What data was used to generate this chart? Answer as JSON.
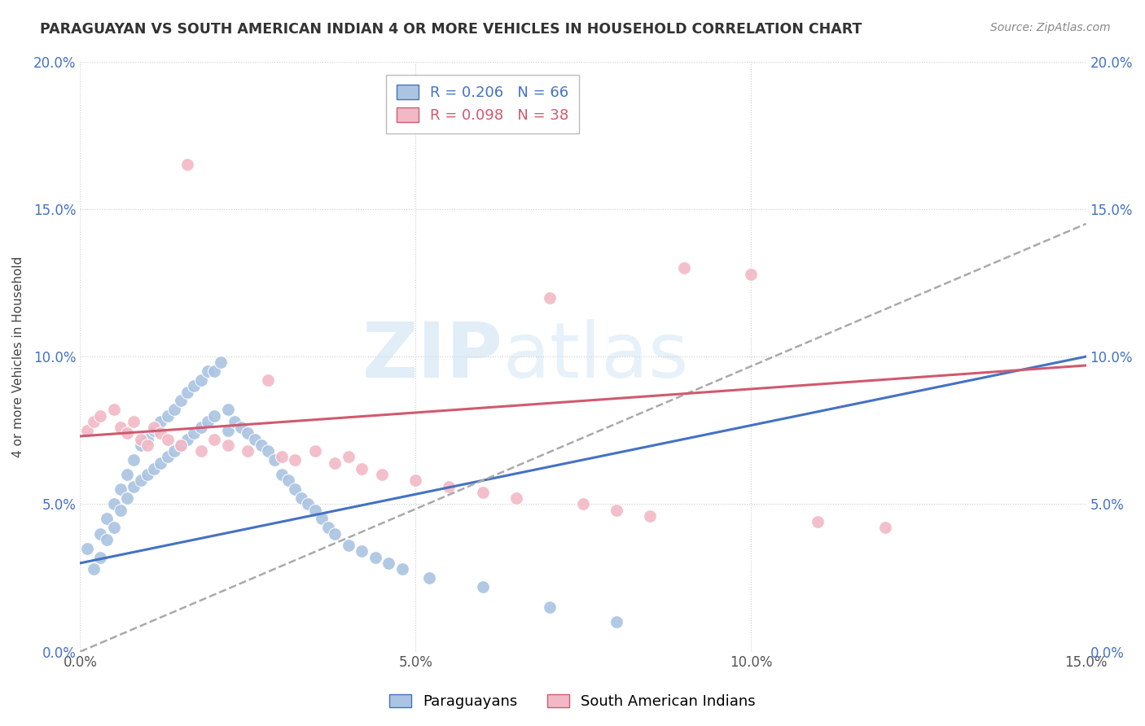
{
  "title": "PARAGUAYAN VS SOUTH AMERICAN INDIAN 4 OR MORE VEHICLES IN HOUSEHOLD CORRELATION CHART",
  "source": "Source: ZipAtlas.com",
  "ylabel": "4 or more Vehicles in Household",
  "xmin": 0.0,
  "xmax": 0.15,
  "ymin": 0.0,
  "ymax": 0.2,
  "xticks": [
    0.0,
    0.05,
    0.1,
    0.15
  ],
  "yticks": [
    0.0,
    0.05,
    0.1,
    0.15,
    0.2
  ],
  "xtick_labels": [
    "0.0%",
    "5.0%",
    "10.0%",
    "15.0%"
  ],
  "ytick_labels": [
    "0.0%",
    "5.0%",
    "10.0%",
    "15.0%",
    "20.0%"
  ],
  "paraguayan_R": 0.206,
  "paraguayan_N": 66,
  "sai_R": 0.098,
  "sai_N": 38,
  "paraguayan_color": "#aac4e2",
  "sai_color": "#f2b8c6",
  "paraguayan_line_color": "#4472c4",
  "sai_line_color": "#d05a6e",
  "gray_dashed_color": "#aaaaaa",
  "watermark": "ZIPatlas",
  "paraguayan_x": [
    0.001,
    0.002,
    0.003,
    0.003,
    0.004,
    0.004,
    0.005,
    0.005,
    0.006,
    0.006,
    0.007,
    0.007,
    0.008,
    0.008,
    0.009,
    0.009,
    0.01,
    0.01,
    0.011,
    0.011,
    0.012,
    0.012,
    0.013,
    0.013,
    0.014,
    0.014,
    0.015,
    0.015,
    0.016,
    0.016,
    0.017,
    0.017,
    0.018,
    0.018,
    0.019,
    0.019,
    0.02,
    0.02,
    0.021,
    0.022,
    0.022,
    0.023,
    0.024,
    0.025,
    0.026,
    0.027,
    0.028,
    0.029,
    0.03,
    0.031,
    0.032,
    0.033,
    0.034,
    0.035,
    0.036,
    0.037,
    0.038,
    0.04,
    0.042,
    0.044,
    0.046,
    0.048,
    0.052,
    0.06,
    0.07,
    0.08
  ],
  "paraguayan_y": [
    0.035,
    0.028,
    0.04,
    0.032,
    0.045,
    0.038,
    0.05,
    0.042,
    0.055,
    0.048,
    0.06,
    0.052,
    0.065,
    0.056,
    0.07,
    0.058,
    0.072,
    0.06,
    0.075,
    0.062,
    0.078,
    0.064,
    0.08,
    0.066,
    0.082,
    0.068,
    0.085,
    0.07,
    0.088,
    0.072,
    0.09,
    0.074,
    0.092,
    0.076,
    0.095,
    0.078,
    0.095,
    0.08,
    0.098,
    0.075,
    0.082,
    0.078,
    0.076,
    0.074,
    0.072,
    0.07,
    0.068,
    0.065,
    0.06,
    0.058,
    0.055,
    0.052,
    0.05,
    0.048,
    0.045,
    0.042,
    0.04,
    0.036,
    0.034,
    0.032,
    0.03,
    0.028,
    0.025,
    0.022,
    0.015,
    0.01
  ],
  "sai_x": [
    0.001,
    0.002,
    0.003,
    0.005,
    0.006,
    0.007,
    0.008,
    0.009,
    0.01,
    0.011,
    0.012,
    0.013,
    0.015,
    0.016,
    0.018,
    0.02,
    0.022,
    0.025,
    0.028,
    0.03,
    0.032,
    0.035,
    0.038,
    0.04,
    0.042,
    0.045,
    0.05,
    0.055,
    0.06,
    0.065,
    0.07,
    0.075,
    0.08,
    0.085,
    0.09,
    0.1,
    0.11,
    0.12
  ],
  "sai_y": [
    0.075,
    0.078,
    0.08,
    0.082,
    0.076,
    0.074,
    0.078,
    0.072,
    0.07,
    0.076,
    0.074,
    0.072,
    0.07,
    0.165,
    0.068,
    0.072,
    0.07,
    0.068,
    0.092,
    0.066,
    0.065,
    0.068,
    0.064,
    0.066,
    0.062,
    0.06,
    0.058,
    0.056,
    0.054,
    0.052,
    0.12,
    0.05,
    0.048,
    0.046,
    0.13,
    0.128,
    0.044,
    0.042
  ]
}
